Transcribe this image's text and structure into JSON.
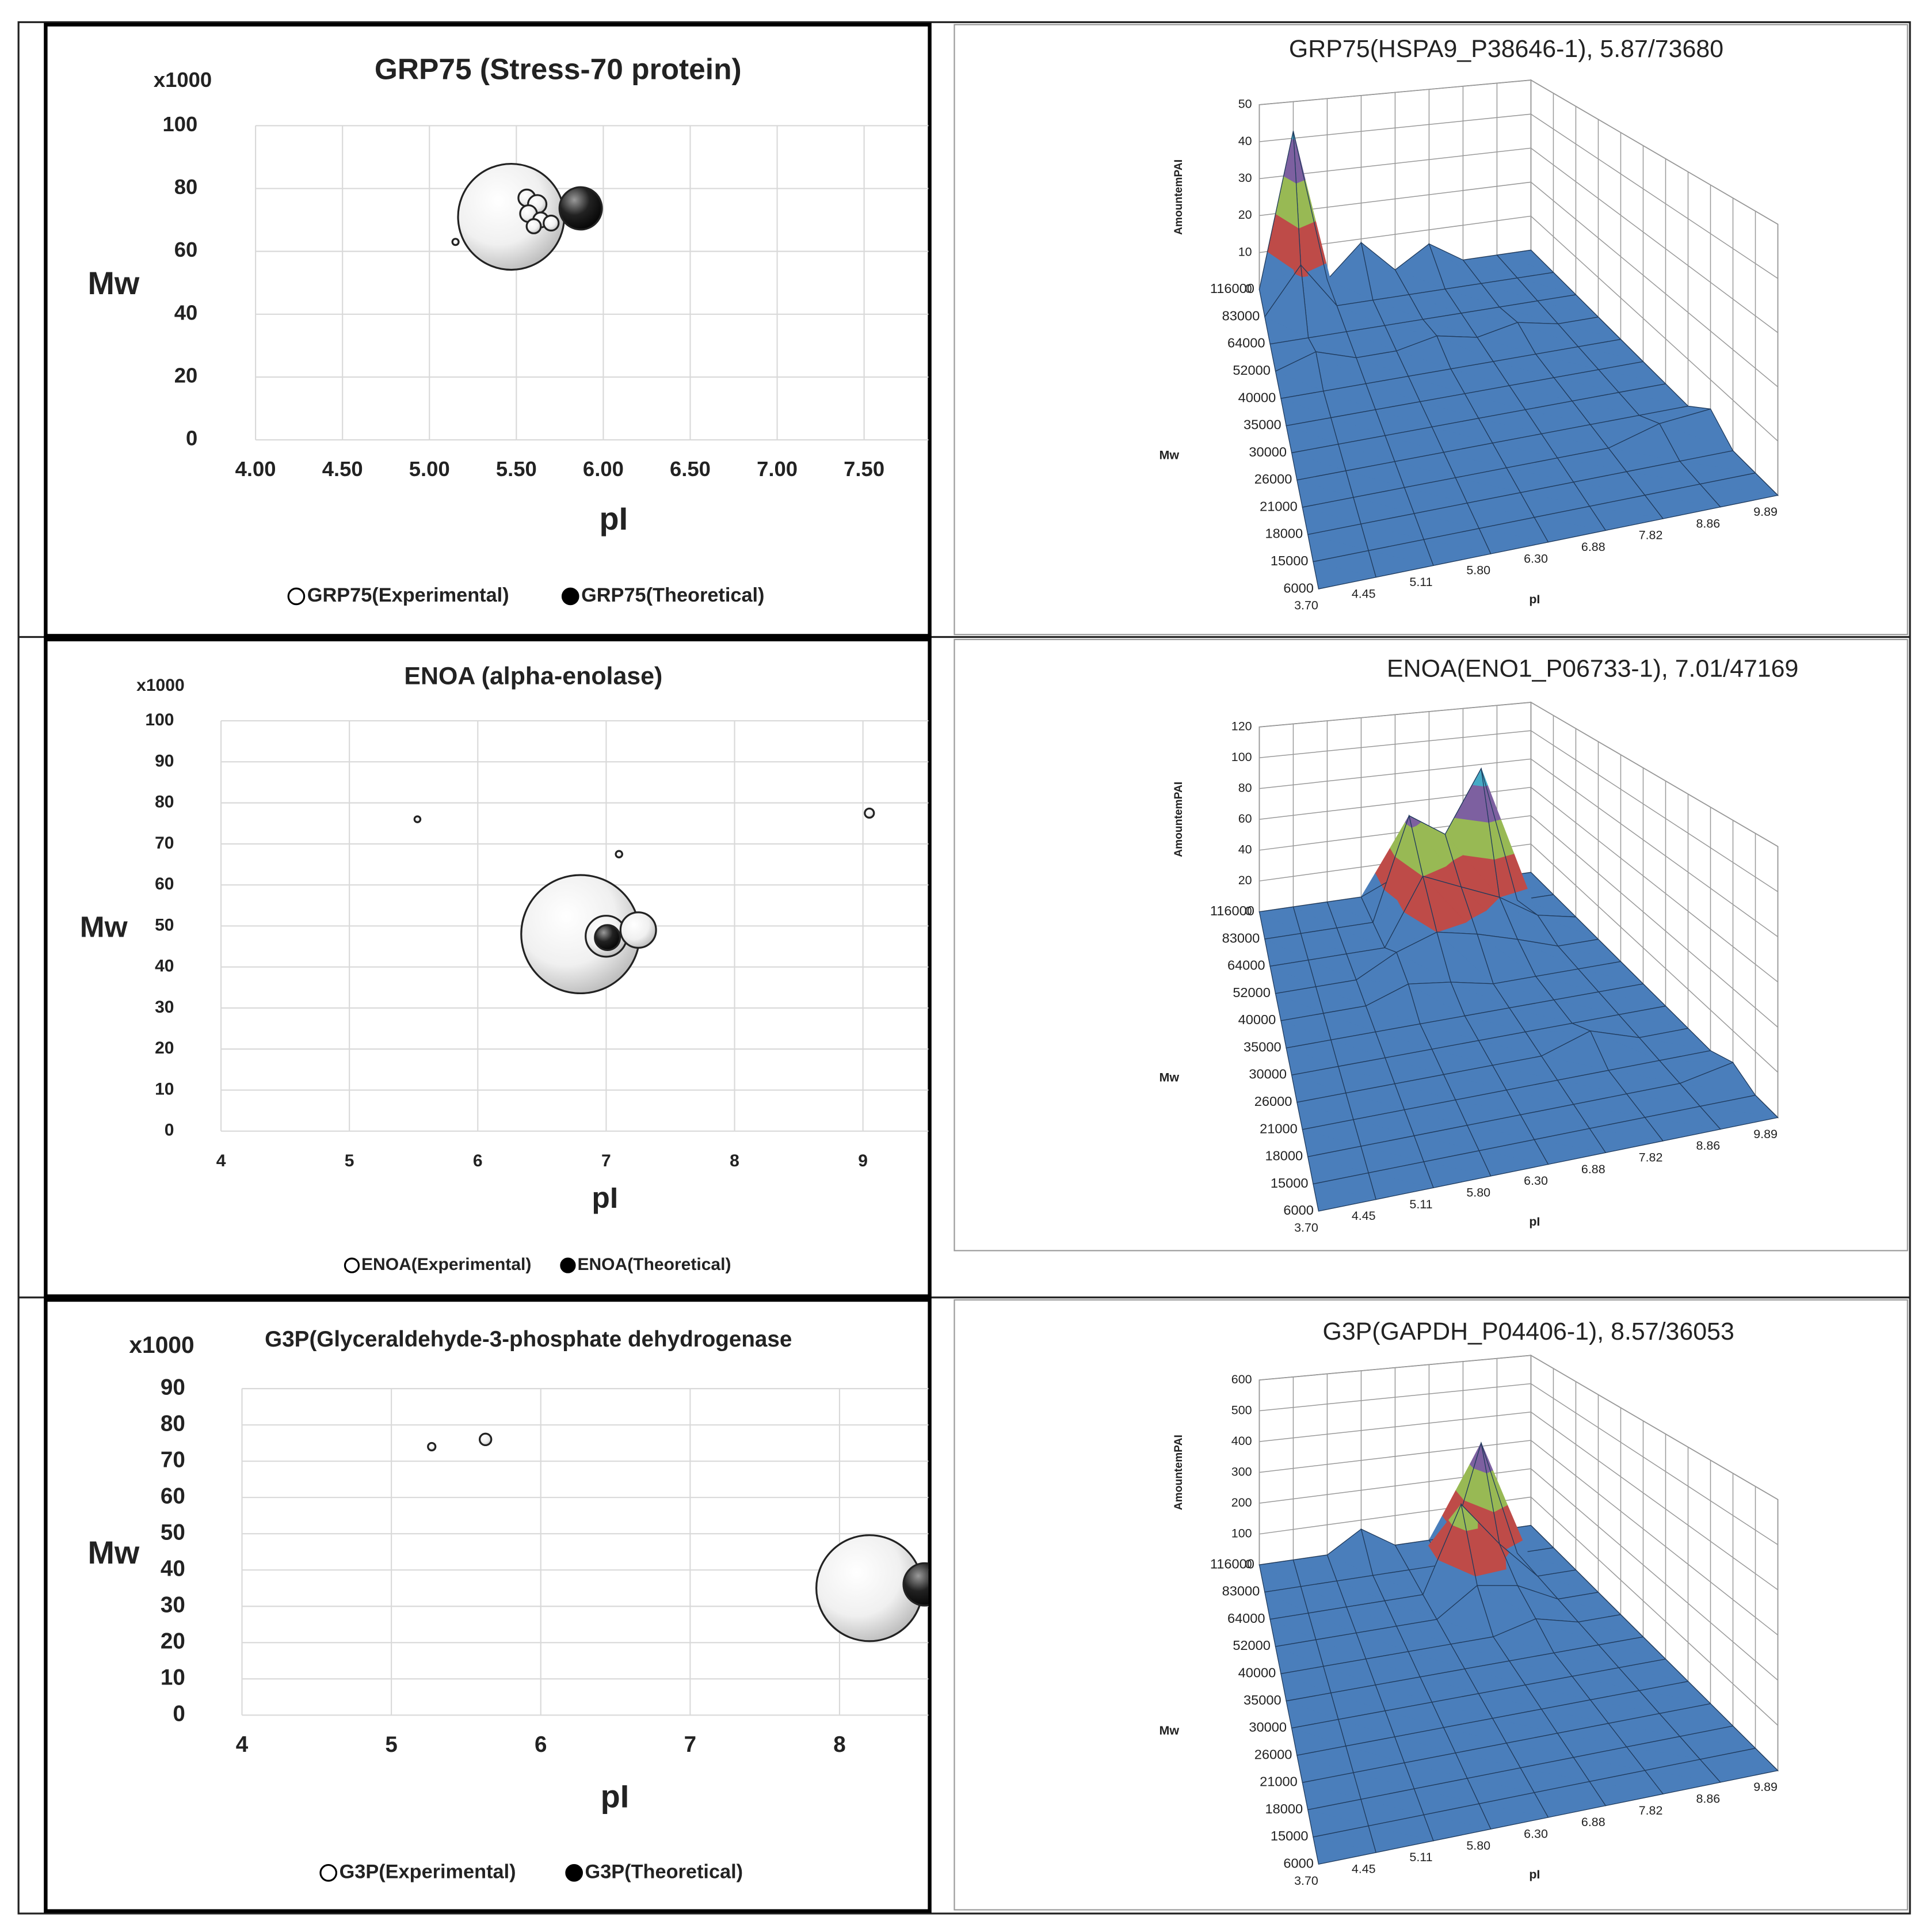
{
  "chart_data": [
    {
      "type": "bubble",
      "title": "GRP75 (Stress-70 protein)",
      "annotation": "x1000",
      "x_label": "pI",
      "y_label": "Mw",
      "xlim": [
        4,
        7.87
      ],
      "ylim": [
        0,
        100
      ],
      "xticks": [
        {
          "value": 4,
          "label": "4.00"
        },
        {
          "value": 4.5,
          "label": "4.50"
        },
        {
          "value": 5,
          "label": "5.00"
        },
        {
          "value": 5.5,
          "label": "5.50"
        },
        {
          "value": 6,
          "label": "6.00"
        },
        {
          "value": 6.5,
          "label": "6.50"
        },
        {
          "value": 7,
          "label": "7.00"
        },
        {
          "value": 7.5,
          "label": "7.50"
        }
      ],
      "yticks": [
        0,
        20,
        40,
        60,
        80,
        100
      ],
      "grid": true,
      "series": [
        {
          "name": "GRP75(Experimental)",
          "color": "#ffffff",
          "x": [
            5.47,
            5.56,
            5.62,
            5.57,
            5.64,
            5.6,
            5.7,
            5.15
          ],
          "y": [
            71,
            77,
            75,
            72,
            70,
            68,
            69,
            63
          ],
          "size": [
            100,
            2.5,
            3,
            2.5,
            2,
            1.8,
            2,
            0.35
          ]
        },
        {
          "name": "GRP75(Theoretical)",
          "color": "#000000",
          "x": [
            5.87
          ],
          "y": [
            73.68
          ],
          "size": [
            16
          ]
        }
      ]
    },
    {
      "type": "surface3d",
      "title": "GRP75(HSPA9_P38646-1), 5.87/73680",
      "x_label": "pI",
      "y_label": "Mw",
      "z_label": "AmountemPAI",
      "x": [
        "3.70",
        "4.45",
        "5.11",
        "5.80",
        "6.30",
        "6.88",
        "7.82",
        "8.86",
        "9.89"
      ],
      "y": [
        "116000",
        "83000",
        "64000",
        "52000",
        "40000",
        "35000",
        "30000",
        "26000",
        "21000",
        "18000",
        "15000",
        "6000"
      ],
      "zlim": [
        0,
        50
      ],
      "zticks": [
        0,
        10,
        20,
        30,
        40,
        50
      ],
      "colors": [
        "#4a7ebb",
        "#be4b48",
        "#98b954",
        "#7d60a0",
        "#46aac5"
      ],
      "values": [
        [
          0,
          42,
          0,
          9,
          0,
          6,
          0,
          0,
          0
        ],
        [
          0,
          12,
          0,
          0,
          0,
          0,
          0,
          0,
          0
        ],
        [
          0,
          0,
          0,
          0,
          0,
          0,
          0,
          0,
          0
        ],
        [
          0,
          3,
          0,
          0,
          2,
          0,
          2,
          0,
          0
        ],
        [
          0,
          0,
          0,
          0,
          0,
          0,
          0,
          0,
          0
        ],
        [
          0,
          0,
          0,
          0,
          0,
          0,
          0,
          0,
          0
        ],
        [
          0,
          0,
          0,
          0,
          0,
          0,
          0,
          0,
          0
        ],
        [
          0,
          0,
          0,
          0,
          0,
          0,
          0,
          0,
          0
        ],
        [
          0,
          0,
          0,
          0,
          0,
          0,
          0,
          3,
          4
        ],
        [
          0,
          0,
          0,
          0,
          0,
          0,
          0,
          0,
          0
        ],
        [
          0,
          0,
          0,
          0,
          0,
          0,
          0,
          0,
          0
        ],
        [
          0,
          0,
          0,
          0,
          0,
          0,
          0,
          0,
          0
        ]
      ]
    },
    {
      "type": "bubble",
      "title": "ENOA (alpha-enolase)",
      "annotation": "x1000",
      "x_label": "pI",
      "y_label": "Mw",
      "xlim": [
        4,
        9.51
      ],
      "ylim": [
        0,
        100
      ],
      "xticks": [
        4,
        5,
        6,
        7,
        8,
        9
      ],
      "yticks": [
        0,
        10,
        20,
        30,
        40,
        50,
        60,
        70,
        80,
        90,
        100
      ],
      "grid": true,
      "series": [
        {
          "name": "ENOA(Experimental)",
          "color": "#ffffff",
          "x": [
            5.53,
            7.1,
            9.05,
            6.8,
            7.0,
            7.25
          ],
          "y": [
            76,
            67.5,
            77.5,
            48,
            47.5,
            49
          ],
          "size": [
            0.25,
            0.3,
            0.6,
            100,
            12,
            9
          ]
        },
        {
          "name": "ENOA(Theoretical)",
          "color": "#000000",
          "x": [
            7.01
          ],
          "y": [
            47.17
          ],
          "size": [
            4.5
          ]
        }
      ]
    },
    {
      "type": "surface3d",
      "title": "ENOA(ENO1_P06733-1), 7.01/47169",
      "x_label": "pI",
      "y_label": "Mw",
      "z_label": "AmountemPAI",
      "x": [
        "3.70",
        "4.45",
        "5.11",
        "5.80",
        "6.30",
        "6.88",
        "7.82",
        "8.86",
        "9.89"
      ],
      "y": [
        "116000",
        "83000",
        "64000",
        "52000",
        "40000",
        "35000",
        "30000",
        "26000",
        "21000",
        "18000",
        "15000",
        "6000"
      ],
      "zlim": [
        0,
        120
      ],
      "zticks": [
        0,
        20,
        40,
        60,
        80,
        100,
        120
      ],
      "colors": [
        "#4a7ebb",
        "#be4b48",
        "#98b954",
        "#7d60a0",
        "#46aac5",
        "#f79646"
      ],
      "values": [
        [
          0,
          0,
          0,
          0,
          10,
          0,
          5,
          0,
          0
        ],
        [
          0,
          0,
          0,
          0,
          65,
          50,
          90,
          0,
          0
        ],
        [
          0,
          0,
          0,
          0,
          40,
          30,
          20,
          5,
          0
        ],
        [
          0,
          0,
          0,
          12,
          20,
          15,
          8,
          0,
          0
        ],
        [
          0,
          0,
          0,
          8,
          5,
          0,
          0,
          0,
          0
        ],
        [
          0,
          0,
          0,
          0,
          0,
          0,
          0,
          0,
          0
        ],
        [
          0,
          0,
          0,
          0,
          0,
          0,
          0,
          0,
          0
        ],
        [
          0,
          0,
          0,
          0,
          0,
          0,
          8,
          0,
          0
        ],
        [
          0,
          0,
          0,
          0,
          0,
          0,
          0,
          0,
          0
        ],
        [
          0,
          0,
          0,
          0,
          0,
          0,
          0,
          0,
          5
        ],
        [
          0,
          0,
          0,
          0,
          0,
          0,
          0,
          0,
          0
        ],
        [
          0,
          0,
          0,
          0,
          0,
          0,
          0,
          0,
          0
        ]
      ]
    },
    {
      "type": "bubble",
      "title": "G3P(Glyceraldehyde-3-phosphate dehydrogenase",
      "annotation": "x1000",
      "x_label": "pI",
      "y_label": "Mw",
      "xlim": [
        4,
        8.595
      ],
      "ylim": [
        0,
        90
      ],
      "xticks": [
        4,
        5,
        6,
        7,
        8
      ],
      "yticks": [
        0,
        10,
        20,
        30,
        40,
        50,
        60,
        70,
        80,
        90
      ],
      "grid": true,
      "series": [
        {
          "name": "G3P(Experimental)",
          "color": "#ffffff",
          "x": [
            5.27,
            5.63,
            8.2
          ],
          "y": [
            74,
            76,
            35
          ],
          "size": [
            0.5,
            1.2,
            100
          ]
        },
        {
          "name": "G3P(Theoretical)",
          "color": "#000000",
          "x": [
            8.57
          ],
          "y": [
            36.05
          ],
          "size": [
            16
          ]
        }
      ]
    },
    {
      "type": "surface3d",
      "title": "G3P(GAPDH_P04406-1), 8.57/36053",
      "x_label": "pI",
      "y_label": "Mw",
      "z_label": "AmountemPAI",
      "x": [
        "3.70",
        "4.45",
        "5.11",
        "5.80",
        "6.30",
        "6.88",
        "7.82",
        "8.86",
        "9.89"
      ],
      "y": [
        "116000",
        "83000",
        "64000",
        "52000",
        "40000",
        "35000",
        "30000",
        "26000",
        "21000",
        "18000",
        "15000",
        "6000"
      ],
      "zlim": [
        0,
        600
      ],
      "zticks": [
        0,
        100,
        200,
        300,
        400,
        500,
        600
      ],
      "colors": [
        "#4a7ebb",
        "#be4b48",
        "#98b954",
        "#7d60a0",
        "#46aac5",
        "#f79646"
      ],
      "values": [
        [
          0,
          0,
          0,
          70,
          0,
          0,
          0,
          0,
          0
        ],
        [
          0,
          0,
          0,
          0,
          0,
          0,
          380,
          0,
          0
        ],
        [
          0,
          0,
          0,
          0,
          0,
          260,
          120,
          0,
          0
        ],
        [
          0,
          0,
          0,
          0,
          0,
          80,
          60,
          0,
          0
        ],
        [
          0,
          0,
          0,
          0,
          0,
          0,
          30,
          0,
          0
        ],
        [
          0,
          0,
          0,
          0,
          0,
          0,
          0,
          0,
          0
        ],
        [
          0,
          0,
          0,
          0,
          0,
          0,
          0,
          0,
          0
        ],
        [
          0,
          0,
          0,
          0,
          0,
          0,
          0,
          0,
          0
        ],
        [
          0,
          0,
          0,
          0,
          0,
          0,
          0,
          0,
          0
        ],
        [
          0,
          0,
          0,
          0,
          0,
          0,
          0,
          0,
          0
        ],
        [
          0,
          0,
          0,
          0,
          0,
          0,
          0,
          0,
          0
        ],
        [
          0,
          0,
          0,
          0,
          0,
          0,
          0,
          0,
          0
        ]
      ]
    }
  ]
}
